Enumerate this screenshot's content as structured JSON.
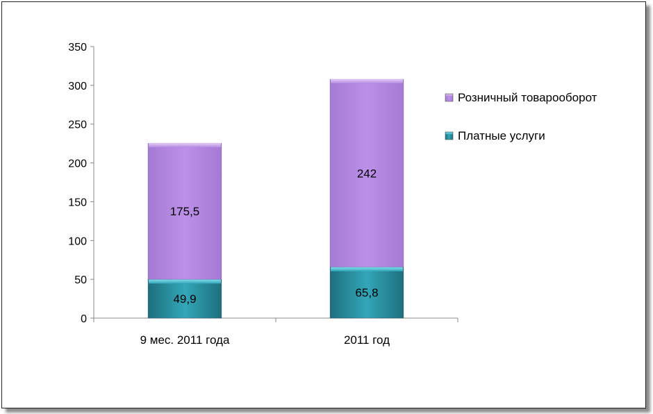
{
  "chart_data": {
    "type": "bar",
    "stacked": true,
    "categories": [
      "9 мес. 2011 года",
      "2011 год"
    ],
    "series": [
      {
        "name": "Платные услуги",
        "values": [
          49.9,
          65.8
        ],
        "labels": [
          "49,9",
          "65,8"
        ],
        "color": "#2a8fa0"
      },
      {
        "name": "Розничный товарооборот",
        "values": [
          175.5,
          242
        ],
        "labels": [
          "175,5",
          "242"
        ],
        "color": "#b488e0"
      }
    ],
    "legend_order": [
      1,
      0
    ],
    "y_ticks": [
      "0",
      "50",
      "100",
      "150",
      "200",
      "250",
      "300",
      "350"
    ],
    "ylim": [
      0,
      350
    ],
    "grid": false,
    "legend_position": "right",
    "title": "",
    "xlabel": "",
    "ylabel": ""
  }
}
